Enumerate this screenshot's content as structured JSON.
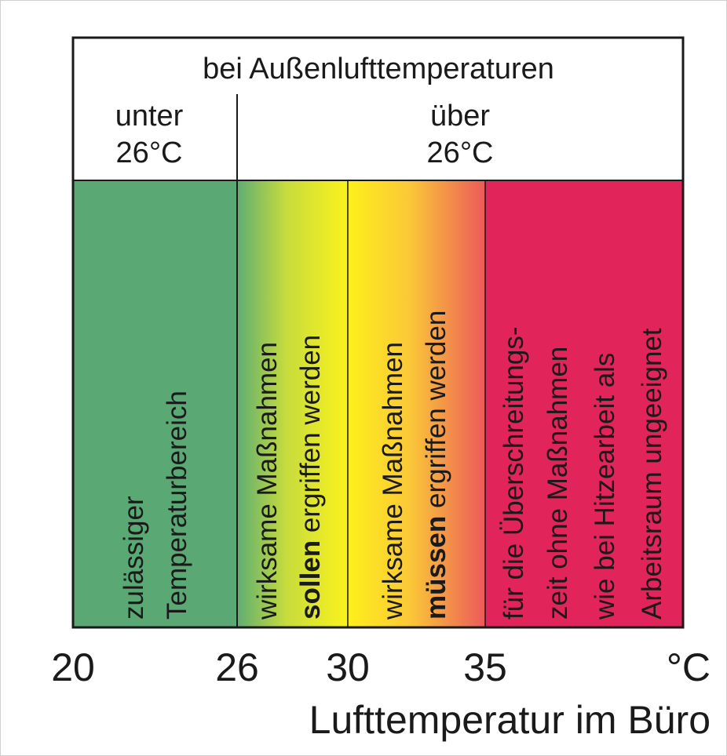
{
  "header": {
    "title": "bei Außenlufttemperaturen",
    "left": [
      "unter",
      "26°C"
    ],
    "right": [
      "über",
      "26°C"
    ]
  },
  "zones": [
    {
      "lines": [
        [
          {
            "text": "zulässiger"
          }
        ],
        [
          {
            "text": "Temperaturbereich"
          }
        ]
      ]
    },
    {
      "lines": [
        [
          {
            "text": "wirksame Maßnahmen"
          }
        ],
        [
          {
            "text": "sollen",
            "bold": true
          },
          {
            "text": " ergriffen werden"
          }
        ]
      ]
    },
    {
      "lines": [
        [
          {
            "text": "wirksame Maßnahmen"
          }
        ],
        [
          {
            "text": "müssen",
            "bold": true
          },
          {
            "text": " ergriffen werden"
          }
        ]
      ]
    },
    {
      "lines": [
        [
          {
            "text": "für die Überschreitungs-"
          }
        ],
        [
          {
            "text": "zeit ohne Maßnahmen"
          }
        ],
        [
          {
            "text": "wie bei Hitzearbeit als"
          }
        ],
        [
          {
            "text": "Arbeitsraum ungeeignet"
          }
        ]
      ]
    }
  ],
  "axis": {
    "ticks": [
      "20",
      "26",
      "30",
      "35",
      "°C"
    ],
    "label": "Lufttemperatur im Büro"
  }
}
